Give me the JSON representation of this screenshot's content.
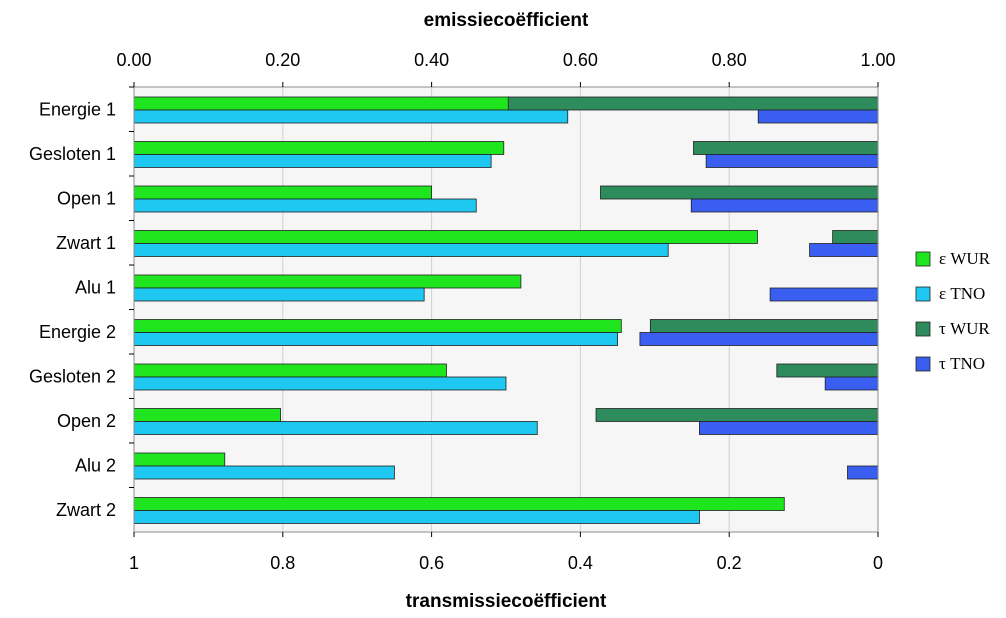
{
  "chart_data": {
    "type": "bar",
    "orientation": "horizontal",
    "title": "",
    "xlabel_top": "emissiecoëfficient",
    "xlabel_bottom": "transmissiecoëfficient",
    "top_axis": {
      "ticks": [
        "0.00",
        "0.20",
        "0.40",
        "0.60",
        "0.80",
        "1.00"
      ],
      "range": [
        0,
        1
      ]
    },
    "bottom_axis": {
      "ticks": [
        "1",
        "0.8",
        "0.6",
        "0.4",
        "0.2",
        "0"
      ],
      "range": [
        1,
        0
      ],
      "reversed": true
    },
    "grid": true,
    "legend_position": "right",
    "categories": [
      "Energie 1",
      "Gesloten 1",
      "Open 1",
      "Zwart 1",
      "Alu 1",
      "Energie 2",
      "Gesloten 2",
      "Open 2",
      "Alu 2",
      "Zwart 2"
    ],
    "series": [
      {
        "name": "ε WUR",
        "axis": "emissiecoëfficient",
        "color": "#1fe51f",
        "values": [
          0.505,
          0.497,
          0.4,
          0.838,
          0.52,
          0.655,
          0.42,
          0.197,
          0.122,
          0.874
        ]
      },
      {
        "name": "ε TNO",
        "axis": "emissiecoëfficient",
        "color": "#1ec8f0",
        "values": [
          0.583,
          0.48,
          0.46,
          0.718,
          0.39,
          0.65,
          0.5,
          0.542,
          0.35,
          0.76
        ]
      },
      {
        "name": "τ WUR",
        "axis": "transmissiecoëfficient",
        "color": "#2e8b5c",
        "values": [
          0.497,
          0.248,
          0.373,
          0.061,
          0,
          0.306,
          0.136,
          0.379,
          0,
          0
        ]
      },
      {
        "name": "τ TNO",
        "axis": "transmissiecoëfficient",
        "color": "#3a5ef0",
        "values": [
          0.161,
          0.231,
          0.251,
          0.092,
          0.145,
          0.32,
          0.071,
          0.24,
          0.041,
          0
        ]
      }
    ]
  }
}
